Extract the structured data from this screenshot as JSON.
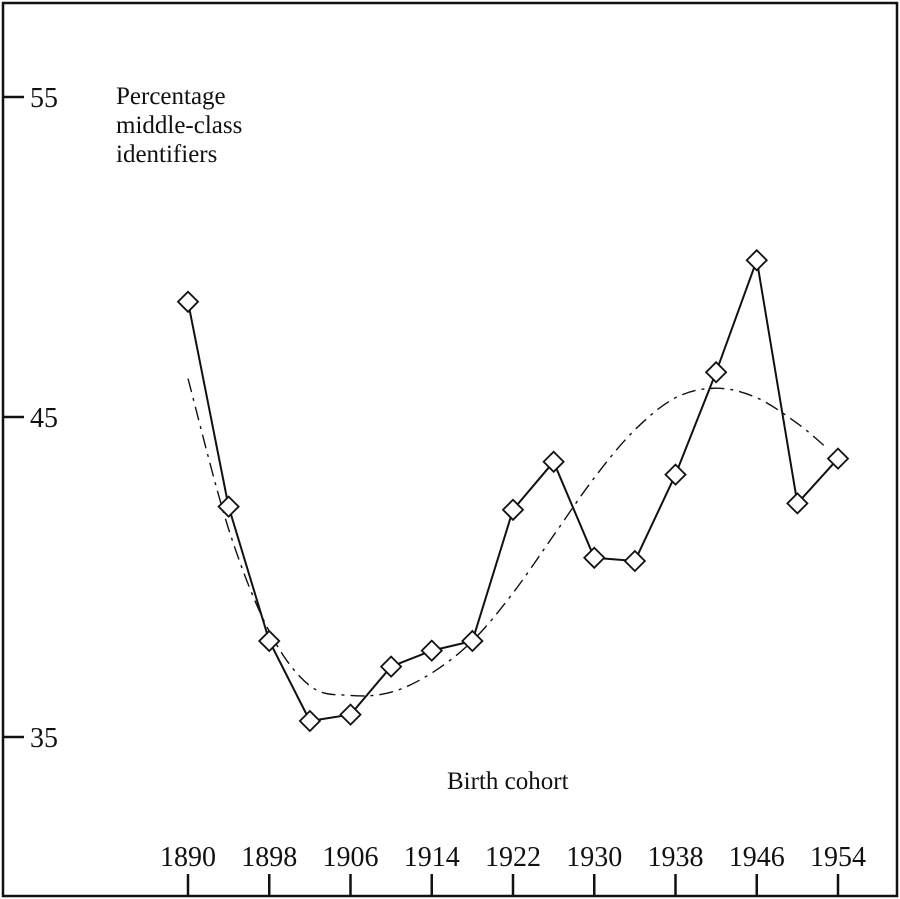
{
  "chart_data": {
    "type": "line",
    "ylabel_lines": [
      "Percentage",
      "middle-class",
      "identifiers"
    ],
    "xlabel": "Birth cohort",
    "xlim": [
      1890,
      1954
    ],
    "ylim": [
      35,
      55
    ],
    "x_ticks": [
      1890,
      1898,
      1906,
      1914,
      1922,
      1930,
      1938,
      1946,
      1954
    ],
    "y_ticks": [
      35,
      45,
      55
    ],
    "grid": false,
    "series": [
      {
        "style": "solid-diamond",
        "x": [
          1890,
          1894,
          1898,
          1902,
          1906,
          1910,
          1914,
          1918,
          1922,
          1926,
          1930,
          1934,
          1938,
          1942,
          1946,
          1950,
          1954
        ],
        "y": [
          48.6,
          42.2,
          38.0,
          35.5,
          35.7,
          37.2,
          37.7,
          38.0,
          42.1,
          43.6,
          40.6,
          40.5,
          43.2,
          46.4,
          49.9,
          42.3,
          43.7
        ]
      },
      {
        "style": "dashed-fit",
        "x": [
          1890,
          1894,
          1898,
          1902,
          1906,
          1910,
          1914,
          1918,
          1922,
          1926,
          1930,
          1934,
          1938,
          1942,
          1946,
          1950,
          1953
        ],
        "y": [
          46.2,
          41.5,
          38.3,
          36.6,
          36.3,
          36.4,
          37.0,
          38.0,
          39.5,
          41.3,
          43.1,
          44.6,
          45.6,
          45.9,
          45.6,
          44.8,
          44.0
        ]
      }
    ]
  }
}
